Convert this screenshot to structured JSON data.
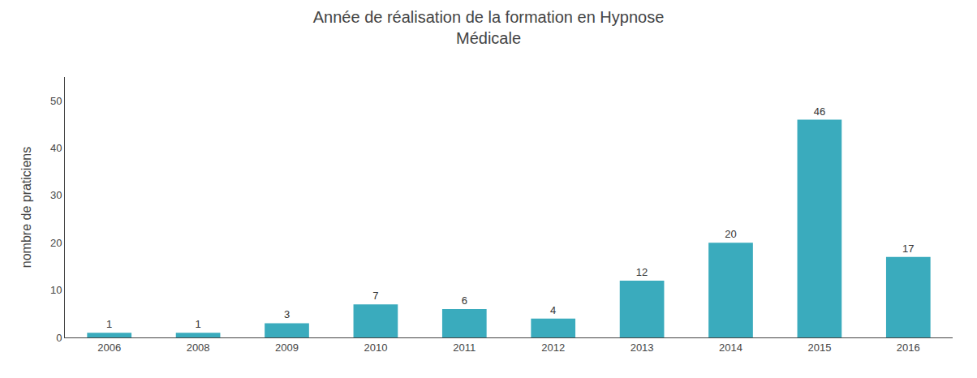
{
  "chart_data": {
    "type": "bar",
    "title": "Année de réalisation de la formation en Hypnose\nMédicale",
    "ylabel": "nombre de praticiens",
    "categories": [
      "2006",
      "2008",
      "2009",
      "2010",
      "2011",
      "2012",
      "2013",
      "2014",
      "2015",
      "2016"
    ],
    "values": [
      1,
      1,
      3,
      7,
      6,
      4,
      12,
      20,
      46,
      17
    ],
    "color": "#3aabbd",
    "ylim": [
      0,
      55
    ],
    "yticks": [
      0,
      10,
      20,
      30,
      40,
      50
    ],
    "grid": false,
    "data_labels": true
  }
}
